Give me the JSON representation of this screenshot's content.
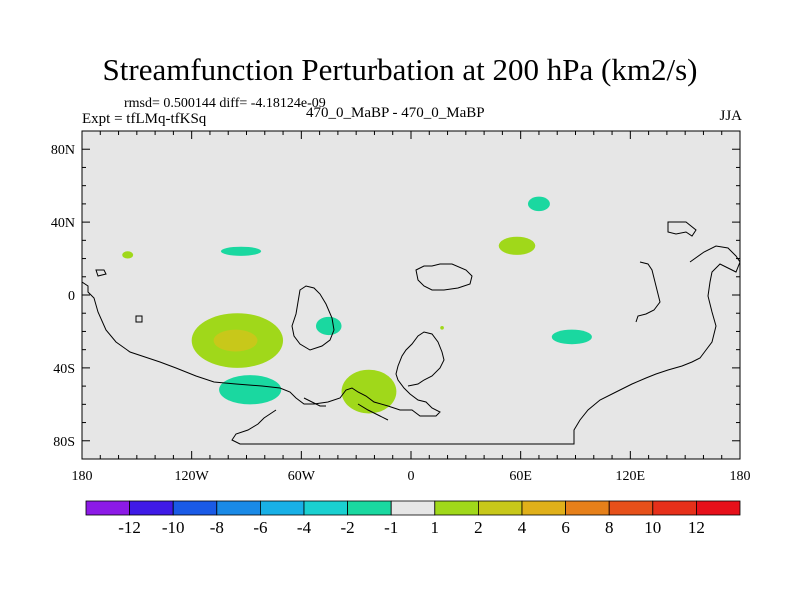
{
  "header": {
    "title": "Streamfunction Perturbation at 200 hPa (km2/s)",
    "stats": "rmsd= 0.500144 diff= -4.18124e-09",
    "expt": "Expt = tfLMq-tfKSq",
    "center_label": "470_0_MaBP - 470_0_MaBP",
    "season": "JJA"
  },
  "chart_data": {
    "type": "heatmap",
    "title": "Streamfunction Perturbation at 200 hPa (km2/s)",
    "xlabel": "",
    "ylabel": "",
    "xlim": [
      -180,
      180
    ],
    "ylim": [
      -90,
      90
    ],
    "x_ticks": [
      {
        "value": -180,
        "label": "180"
      },
      {
        "value": -120,
        "label": "120W"
      },
      {
        "value": -60,
        "label": "60W"
      },
      {
        "value": 0,
        "label": "0"
      },
      {
        "value": 60,
        "label": "60E"
      },
      {
        "value": 120,
        "label": "120E"
      },
      {
        "value": 180,
        "label": "180"
      }
    ],
    "y_ticks": [
      {
        "value": 80,
        "label": "80N"
      },
      {
        "value": 40,
        "label": "40N"
      },
      {
        "value": 0,
        "label": "0"
      },
      {
        "value": -40,
        "label": "40S"
      },
      {
        "value": -80,
        "label": "80S"
      }
    ],
    "background_color": "#e6e6e6",
    "colorbar": {
      "levels": [
        "-12",
        "-10",
        "-8",
        "-6",
        "-4",
        "-2",
        "-1",
        "1",
        "2",
        "4",
        "6",
        "8",
        "10",
        "12"
      ],
      "colors": [
        "#8c1ae6",
        "#3f1ae6",
        "#1a5ae6",
        "#1a8ae6",
        "#18b0e6",
        "#1ad0d0",
        "#1ad8a0",
        "#e6e6e6",
        "#a0d81a",
        "#c8c81a",
        "#e0b01a",
        "#e6801a",
        "#e6501a",
        "#e6301a",
        "#e6101a"
      ]
    },
    "anomalies": [
      {
        "name": "pos-south-america-outer",
        "lon": -95,
        "lat": -25,
        "rlon": 25,
        "rlat": 15,
        "color": "#a0d81a"
      },
      {
        "name": "pos-south-america-inner",
        "lon": -96,
        "lat": -25,
        "rlon": 12,
        "rlat": 6,
        "color": "#c8c81a"
      },
      {
        "name": "neg-south-pacific",
        "lon": -88,
        "lat": -52,
        "rlon": 17,
        "rlat": 8,
        "color": "#1ad8a0"
      },
      {
        "name": "pos-south-atlantic",
        "lon": -23,
        "lat": -53,
        "rlon": 15,
        "rlat": 12,
        "color": "#a0d81a"
      },
      {
        "name": "neg-amazon",
        "lon": -45,
        "lat": -17,
        "rlon": 7,
        "rlat": 5,
        "color": "#1ad8a0"
      },
      {
        "name": "neg-north-pacific",
        "lon": -93,
        "lat": 24,
        "rlon": 11,
        "rlat": 2.5,
        "color": "#1ad8a0"
      },
      {
        "name": "pos-hawaii",
        "lon": -155,
        "lat": 22,
        "rlon": 3,
        "rlat": 2,
        "color": "#a0d81a"
      },
      {
        "name": "pos-india",
        "lon": 58,
        "lat": 27,
        "rlon": 10,
        "rlat": 5,
        "color": "#a0d81a"
      },
      {
        "name": "neg-siberia",
        "lon": 70,
        "lat": 50,
        "rlon": 6,
        "rlat": 4,
        "color": "#1ad8a0"
      },
      {
        "name": "neg-indian-ocean",
        "lon": 88,
        "lat": -23,
        "rlon": 11,
        "rlat": 4,
        "color": "#1ad8a0"
      },
      {
        "name": "pos-africa-speck",
        "lon": 17,
        "lat": -18,
        "rlon": 1,
        "rlat": 1,
        "color": "#a0d81a"
      }
    ]
  }
}
